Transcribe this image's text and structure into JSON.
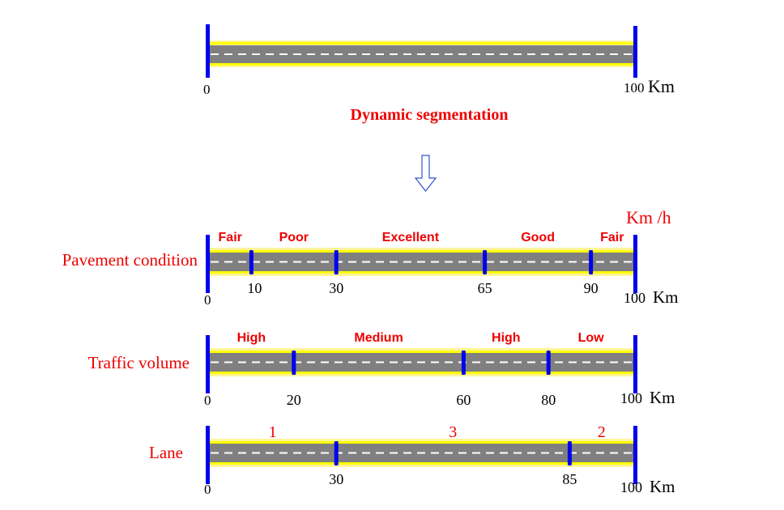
{
  "top": {
    "start_label": "0",
    "end_label": "100",
    "unit": "Km"
  },
  "title": "Dynamic segmentation",
  "arrow_icon": "down-arrow-icon",
  "speed_unit": "Km /h",
  "colors": {
    "road": "#808080",
    "edge": "#FFFF00",
    "edge_soft": "#FFF59A",
    "dash": "#FFFFFF",
    "marker": "#0000EE",
    "label_red": "#EE0000",
    "text": "#000000"
  },
  "tracks": [
    {
      "name": "Pavement condition",
      "start_label": "0",
      "end_label": "100",
      "unit": "Km",
      "breakpoints": [
        10,
        30,
        65,
        90
      ],
      "break_labels": [
        "10",
        "30",
        "65",
        "90"
      ],
      "segments": [
        {
          "label": "Fair",
          "from": 0,
          "to": 10
        },
        {
          "label": "Poor",
          "from": 10,
          "to": 30
        },
        {
          "label": "Excellent",
          "from": 30,
          "to": 65
        },
        {
          "label": "Good",
          "from": 65,
          "to": 90
        },
        {
          "label": "Fair",
          "from": 90,
          "to": 100
        }
      ]
    },
    {
      "name": "Traffic volume",
      "start_label": "0",
      "end_label": "100",
      "unit": "Km",
      "breakpoints": [
        20,
        60,
        80
      ],
      "break_labels": [
        "20",
        "60",
        "80"
      ],
      "segments": [
        {
          "label": "High",
          "from": 0,
          "to": 20
        },
        {
          "label": "Medium",
          "from": 20,
          "to": 60
        },
        {
          "label": "High",
          "from": 60,
          "to": 80
        },
        {
          "label": "Low",
          "from": 80,
          "to": 100
        }
      ]
    },
    {
      "name": "Lane",
      "start_label": "0",
      "end_label": "100",
      "unit": "Km",
      "breakpoints": [
        30,
        85
      ],
      "break_labels": [
        "30",
        "85"
      ],
      "segments": [
        {
          "label": "1",
          "from": 0,
          "to": 30
        },
        {
          "label": "3",
          "from": 30,
          "to": 85
        },
        {
          "label": "2",
          "from": 85,
          "to": 100
        }
      ]
    }
  ]
}
